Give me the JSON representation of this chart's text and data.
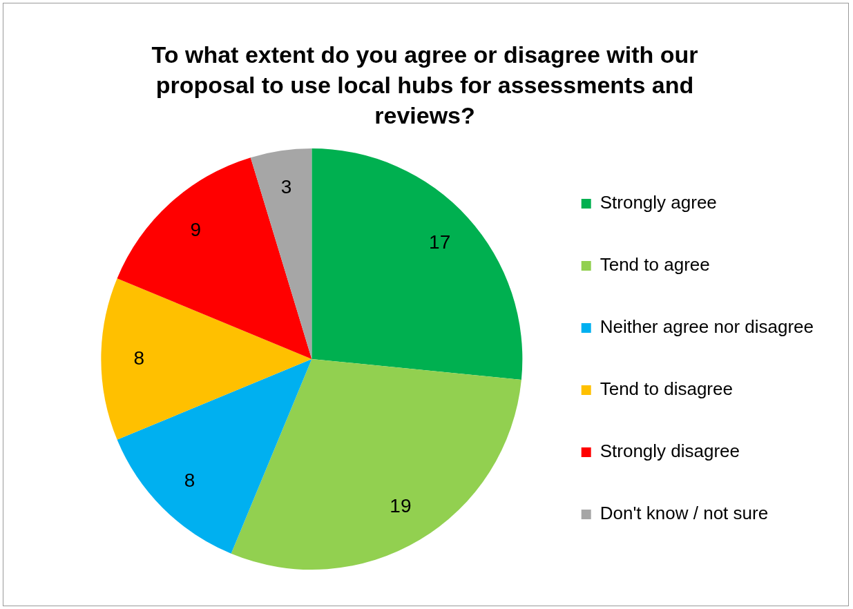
{
  "chart_data": {
    "type": "pie",
    "title": "To what extent do you agree or disagree with our proposal to use local hubs for assessments and reviews?",
    "categories": [
      "Strongly agree",
      "Tend to agree",
      "Neither agree nor disagree",
      "Tend to disagree",
      "Strongly disagree",
      "Don't know / not sure"
    ],
    "values": [
      17,
      19,
      8,
      8,
      9,
      3
    ],
    "colors": [
      "#00b050",
      "#92d050",
      "#00b0f0",
      "#ffc000",
      "#ff0000",
      "#a6a6a6"
    ],
    "data_labels": true,
    "legend": "right"
  }
}
